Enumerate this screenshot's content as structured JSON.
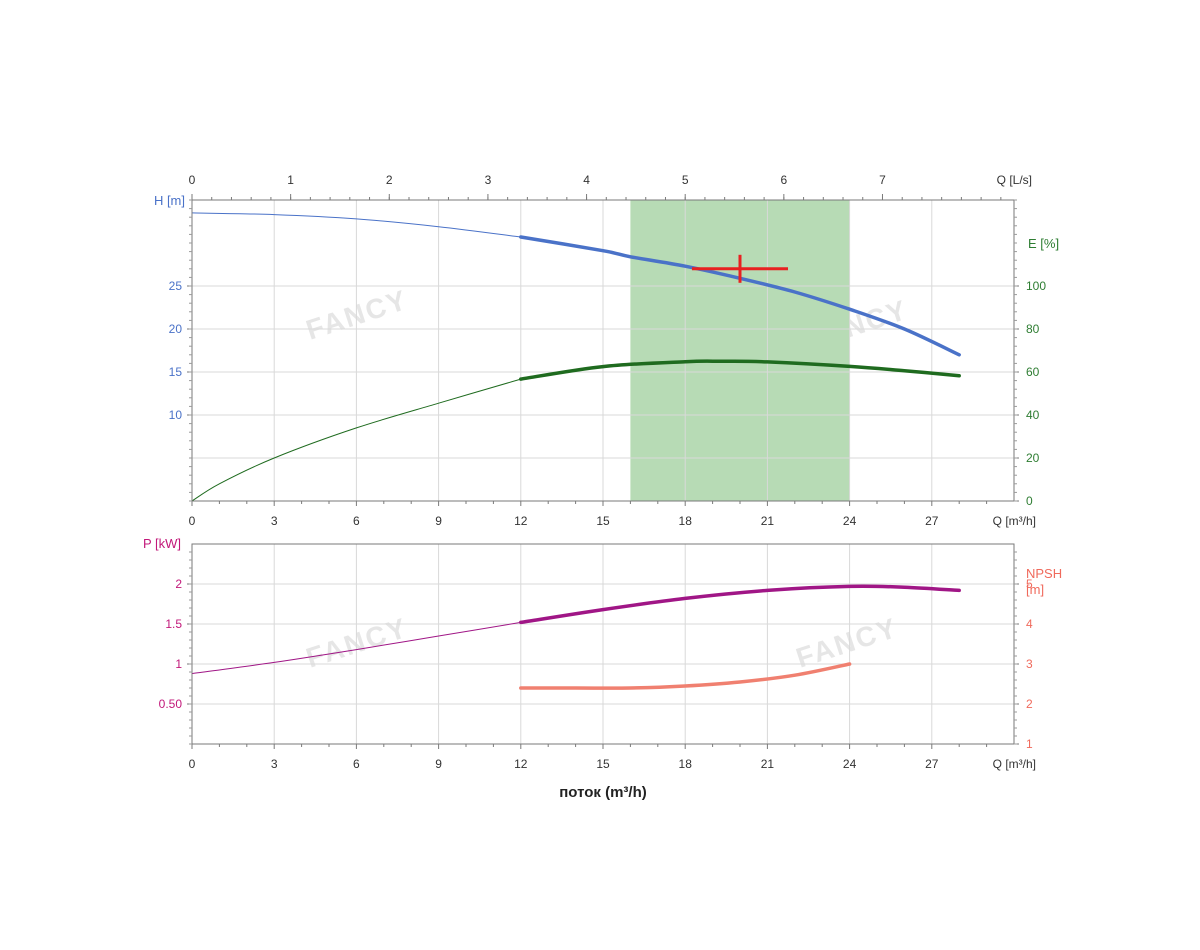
{
  "chart_data": [
    {
      "type": "line",
      "panel": "top",
      "x_label": "Q [m³/h]",
      "x_range": [
        0,
        30
      ],
      "x_ticks": [
        0,
        3,
        6,
        9,
        12,
        15,
        18,
        21,
        24,
        27
      ],
      "x2_label": "Q [L/s]",
      "x2_ticks": [
        0,
        1,
        2,
        3,
        4,
        5,
        6,
        7
      ],
      "y_left_label": "H [m]",
      "y_left_range": [
        0,
        35
      ],
      "y_left_ticks": [
        10,
        15,
        20,
        25
      ],
      "y_left_color": "#4a72c8",
      "y_right_label": "E [%]",
      "y_right_range": [
        0,
        140
      ],
      "y_right_ticks": [
        0,
        20,
        40,
        60,
        80,
        100
      ],
      "y_right_color": "#2e7d32",
      "operating_range": {
        "x": [
          16,
          24
        ],
        "color": "#b7dbb5"
      },
      "duty_point": {
        "x": 20,
        "y": 27,
        "color": "#e82121"
      },
      "grid": true,
      "series": [
        {
          "axis": "left",
          "color": "#4a72c8",
          "x": [
            0,
            3,
            6,
            9,
            12,
            15,
            16,
            18,
            20,
            22,
            24,
            26,
            28
          ],
          "y": [
            33.5,
            33.3,
            32.8,
            31.9,
            30.7,
            29.1,
            28.4,
            27.3,
            25.9,
            24.3,
            22.3,
            20.0,
            17.0
          ],
          "bold_from": 12
        },
        {
          "axis": "right",
          "color": "#1f6b1f",
          "x": [
            0,
            1,
            3,
            6,
            9,
            12,
            15,
            18,
            19.3,
            21,
            24,
            26,
            28
          ],
          "y": [
            0,
            8,
            20,
            34,
            45.5,
            56.7,
            62.5,
            64.8,
            65,
            64.7,
            62.6,
            60.6,
            58.3
          ],
          "bold_from": 12
        }
      ],
      "watermarks": [
        "FANCY",
        "FANCY"
      ]
    },
    {
      "type": "line",
      "panel": "bottom",
      "x_label": "Q [m³/h]",
      "x_title": "поток (m³/h)",
      "x_range": [
        0,
        30
      ],
      "x_ticks": [
        0,
        3,
        6,
        9,
        12,
        15,
        18,
        21,
        24,
        27
      ],
      "y_left_label": "P [kW]",
      "y_left_range": [
        0,
        2.5
      ],
      "y_left_ticks_labels": [
        "0.50",
        "1",
        "1.5",
        "2"
      ],
      "y_left_ticks": [
        0.5,
        1,
        1.5,
        2
      ],
      "y_left_color": "#c2187a",
      "y_right_label_1": "NPSH",
      "y_right_label_2": "[m]",
      "y_right_range": [
        1,
        6
      ],
      "y_right_ticks": [
        1,
        2,
        3,
        4,
        5
      ],
      "y_right_color": "#f06a5c",
      "grid": true,
      "series": [
        {
          "axis": "left",
          "color": "#a01686",
          "x": [
            0,
            3,
            6,
            9,
            12,
            15,
            18,
            21,
            24,
            26,
            28
          ],
          "y": [
            0.88,
            1.02,
            1.18,
            1.35,
            1.52,
            1.68,
            1.82,
            1.92,
            1.97,
            1.96,
            1.92
          ],
          "bold_from": 12
        },
        {
          "axis": "right",
          "color": "#f08070",
          "x": [
            12,
            14,
            16,
            18,
            20,
            22,
            24
          ],
          "y": [
            2.4,
            2.4,
            2.4,
            2.45,
            2.55,
            2.72,
            3.0
          ],
          "bold_from": 12
        }
      ],
      "watermarks": [
        "FANCY",
        "FANCY"
      ]
    }
  ]
}
